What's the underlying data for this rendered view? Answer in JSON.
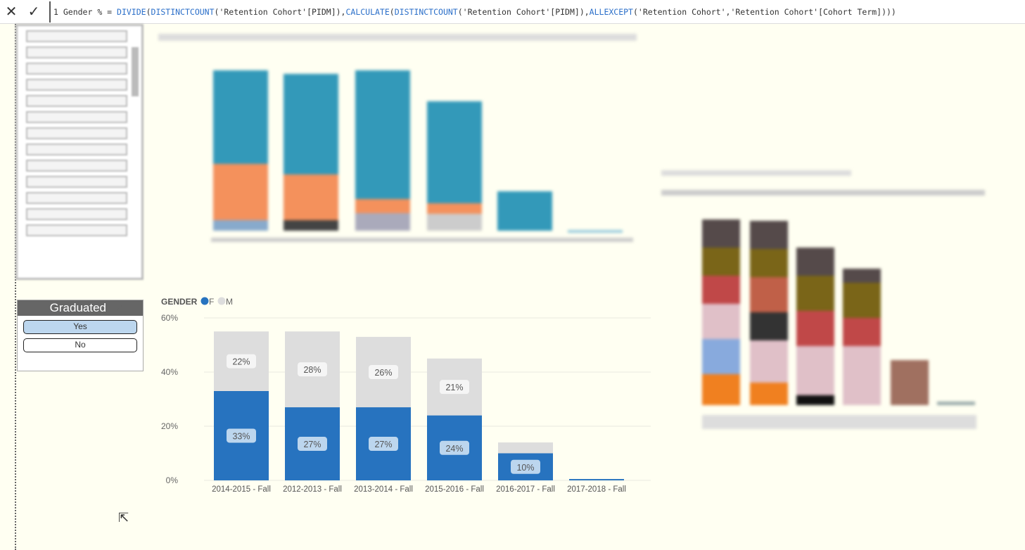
{
  "formula_bar": {
    "cancel_icon": "close-icon",
    "commit_icon": "check-icon",
    "line_no": "1",
    "text_pre": " Gender % = ",
    "fn1": "DIVIDE",
    "p1": "(",
    "fn2": "DISTINCTCOUNT",
    "p2": "('Retention Cohort'[PIDM]),",
    "fn3": "CALCULATE",
    "p3": "(",
    "fn4": "DISTINCTCOUNT",
    "p4": "('Retention Cohort'[PIDM]),",
    "fn5": "ALLEXCEPT",
    "p5": "('Retention Cohort','Retention Cohort'[Cohort Term])))"
  },
  "graduated_slicer": {
    "title": "Graduated",
    "options": [
      "Yes",
      "No"
    ],
    "selected": "Yes"
  },
  "chart_data": {
    "type": "bar",
    "stacked": true,
    "legend_title": "GENDER",
    "legend_position": "top-left",
    "categories": [
      "2014-2015 - Fall",
      "2012-2013 - Fall",
      "2013-2014 - Fall",
      "2015-2016 - Fall",
      "2016-2017 - Fall",
      "2017-2018 - Fall"
    ],
    "series": [
      {
        "name": "F",
        "color": "#2773bf",
        "values": [
          33,
          27,
          27,
          24,
          10,
          0.5
        ],
        "labels": [
          "33%",
          "27%",
          "27%",
          "24%",
          "10%",
          ""
        ]
      },
      {
        "name": "M",
        "color": "#dddddd",
        "values": [
          22,
          28,
          26,
          21,
          4,
          0
        ],
        "labels": [
          "22%",
          "28%",
          "26%",
          "21%",
          "",
          ""
        ]
      }
    ],
    "ylim": [
      0,
      60
    ],
    "yticks": [
      "0%",
      "20%",
      "40%",
      "60%"
    ],
    "grid": true
  }
}
